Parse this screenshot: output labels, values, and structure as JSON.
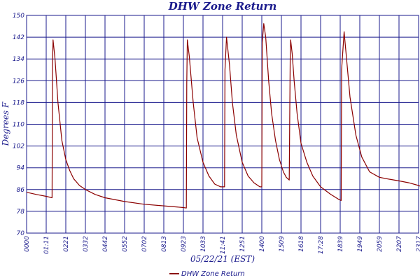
{
  "colors": {
    "grid": "#1a1a8c",
    "series": "#8b0000",
    "text": "#1a1a8c",
    "background": "#ffffff"
  },
  "chart_data": {
    "type": "line",
    "title": "DHW Zone Return",
    "xlabel": "05/22/21 (EST)",
    "ylabel": "Degrees F",
    "ylim": [
      70,
      150
    ],
    "y_ticks": [
      70,
      78,
      86,
      94,
      102,
      110,
      118,
      126,
      134,
      142,
      150
    ],
    "x_ticks": [
      "0000",
      "01:11",
      "0221",
      "0332",
      "0442",
      "0552",
      "0702",
      "0813",
      "0923",
      "1033",
      "11:41",
      "1251",
      "1400",
      "1509",
      "1618",
      "17:28",
      "1839",
      "1949",
      "2059",
      "2207",
      "2317"
    ],
    "grid": true,
    "legend_position": "bottom-center",
    "series": [
      {
        "name": "DHW Zone Return",
        "x": [
          0,
          0.5,
          1.0,
          1.3,
          1.32,
          1.35,
          1.45,
          1.6,
          1.8,
          2.0,
          2.2,
          2.4,
          2.7,
          3.0,
          3.5,
          4.0,
          5.0,
          6.0,
          7.0,
          8.0,
          8.15,
          8.17,
          8.2,
          8.3,
          8.5,
          8.7,
          9.0,
          9.3,
          9.6,
          9.9,
          10.1,
          10.12,
          10.2,
          10.35,
          10.5,
          10.7,
          11.0,
          11.3,
          11.6,
          11.9,
          12.0,
          12.02,
          12.1,
          12.2,
          12.35,
          12.5,
          12.7,
          12.9,
          13.1,
          13.25,
          13.4,
          13.45,
          13.47,
          13.55,
          13.65,
          13.8,
          14.0,
          14.3,
          14.6,
          15.0,
          15.5,
          15.9,
          16.05,
          16.07,
          16.2,
          16.3,
          16.5,
          16.8,
          17.1,
          17.5,
          18.0,
          18.5,
          19.0,
          19.5,
          20.0,
          20.3,
          20.42,
          20.44,
          20.47,
          20.52,
          20.6,
          20.75,
          20.95,
          21.2,
          21.4,
          21.6,
          21.7
        ],
        "y": [
          85,
          84.2,
          83.5,
          83,
          132,
          141,
          134,
          118,
          104,
          97,
          93,
          90,
          87.5,
          86,
          84.2,
          83,
          81.6,
          80.6,
          80,
          79.4,
          79.2,
          125,
          141,
          135,
          118,
          105,
          96,
          91,
          88,
          87,
          87,
          130,
          142,
          132,
          118,
          106,
          96,
          91,
          88.5,
          87,
          87,
          140,
          147,
          142,
          126,
          114,
          104,
          97,
          92.5,
          90.5,
          89.5,
          135,
          141,
          136,
          126,
          114,
          103,
          96,
          91,
          87,
          84.3,
          82.5,
          82,
          130,
          144,
          136,
          120,
          106,
          98,
          92.5,
          90.5,
          89.8,
          89.2,
          88.5,
          87.5,
          86.6,
          85.9,
          136,
          130,
          141,
          142,
          132,
          118,
          108,
          101,
          96,
          94
        ]
      }
    ]
  }
}
